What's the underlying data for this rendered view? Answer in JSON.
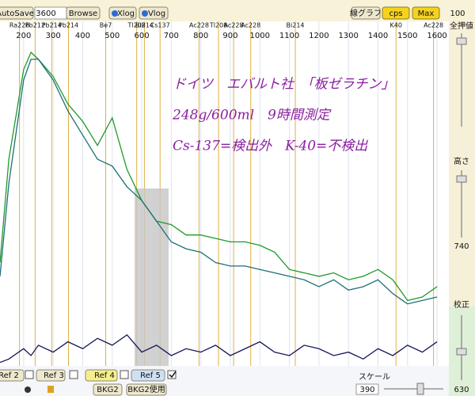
{
  "toolbar": {
    "buttons": [
      "AutoSave",
      "3600",
      "Browse",
      "Xlog",
      "Vlog",
      "線グラフ",
      "cps",
      "Max"
    ]
  },
  "chart_data": {
    "type": "line",
    "annotations": [
      "ドイツ　エバルト社　「板ゼラチン」",
      "248g/600ml　9時間測定",
      "Cs-137=検出外　K-40=不検出"
    ],
    "x": [
      120,
      150,
      200,
      225,
      250,
      300,
      350,
      400,
      450,
      500,
      550,
      600,
      650,
      700,
      750,
      800,
      850,
      900,
      950,
      1000,
      1050,
      1100,
      1150,
      1200,
      1250,
      1300,
      1350,
      1400,
      1450,
      1500,
      1550,
      1600
    ],
    "series": [
      {
        "color": "#1e9a2a",
        "values": [
          30,
          60,
          86,
          91,
          89,
          84,
          76,
          71,
          64,
          72,
          57,
          48,
          42,
          41,
          38,
          38,
          37,
          36,
          36,
          35,
          33,
          28,
          27,
          26,
          27,
          25,
          26,
          28,
          25,
          19,
          20,
          23
        ]
      },
      {
        "color": "#1d6f78",
        "values": [
          26,
          53,
          83,
          89,
          89,
          83,
          74,
          67,
          60,
          58,
          52,
          48,
          42,
          36,
          34,
          33,
          30,
          29,
          29,
          28,
          27,
          26,
          25,
          23,
          25,
          22,
          23,
          25,
          21,
          18,
          19,
          20
        ]
      },
      {
        "color": "#14145a",
        "values": [
          1,
          2,
          5,
          3,
          6,
          4,
          7,
          5,
          8,
          6,
          9,
          4,
          6,
          3,
          5,
          4,
          6,
          3,
          5,
          7,
          4,
          3,
          6,
          5,
          3,
          4,
          2,
          5,
          3,
          6,
          4,
          7
        ]
      }
    ],
    "xlim": [
      120,
      1640
    ],
    "ylim": [
      0,
      100
    ],
    "xticks": [
      200,
      300,
      400,
      500,
      600,
      700,
      800,
      900,
      1000,
      1100,
      1200,
      1300,
      1400,
      1500,
      1600
    ],
    "grid": true,
    "peaks": [
      {
        "label": "Ra226",
        "energy": 186
      },
      {
        "label": "Pb212",
        "energy": 239
      },
      {
        "label": "Pb214",
        "energy": 295
      },
      {
        "label": "Pb214",
        "energy": 352
      },
      {
        "label": "Be7",
        "energy": 478
      },
      {
        "label": "Tl208",
        "energy": 583
      },
      {
        "label": "Bi214",
        "energy": 609
      },
      {
        "label": "Cs137",
        "energy": 662
      },
      {
        "label": "Ac228",
        "energy": 794
      },
      {
        "label": "Tl208",
        "energy": 860
      },
      {
        "label": "Ac228",
        "energy": 911
      },
      {
        "label": "Ac228",
        "energy": 969
      },
      {
        "label": "Bi214",
        "energy": 1120
      },
      {
        "label": "K40",
        "energy": 1461
      },
      {
        "label": "Ac228",
        "energy": 1588
      }
    ]
  },
  "side_panel": {
    "top_value": "100",
    "label_1": "全押値",
    "label_2": "高さ",
    "value_2": "740",
    "label_3": "校正",
    "value_3": "630"
  },
  "bottom_bar": {
    "refs": [
      "Ref 2",
      "Ref 3",
      "Ref 4",
      "Ref 5"
    ],
    "bkg": "BKG2",
    "bkg_use": "BKG2使用",
    "scale_label": "スケール",
    "scale_value": "390"
  }
}
